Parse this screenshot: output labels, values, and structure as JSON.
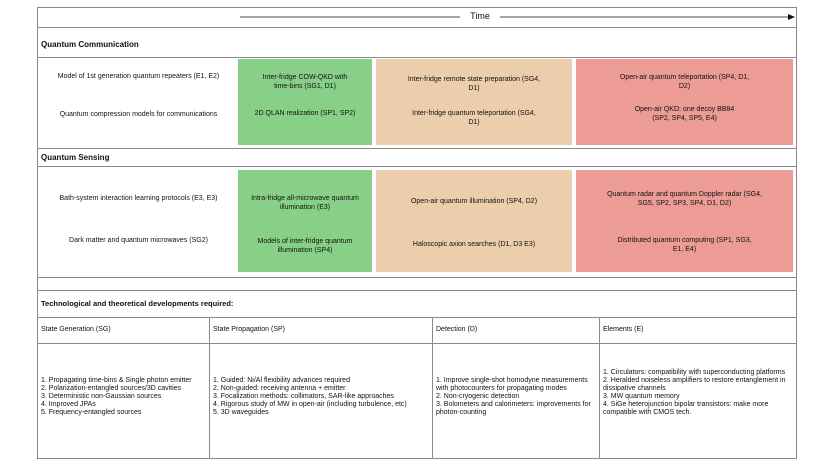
{
  "time_label": "Time",
  "colors": {
    "green": "#88d088",
    "tan": "#eccdac",
    "red": "#ec9c94",
    "border": "#8a8a8a"
  },
  "communication": {
    "title": "Quantum Communication",
    "left": [
      "Model of 1st generation quantum repeaters (E1, E2)",
      "Quantum compression models for communications"
    ],
    "green": [
      "Inter-fridge COW-QKD with time-bins (SG1, D1)",
      "2D QLAN realization (SP1, SP2)"
    ],
    "tan": [
      "Inter-fridge remote state preparation (SG4, D1)",
      "Inter-fridge quantum teleportation (SG4, D1)"
    ],
    "red": [
      "Open-air quantum teleportation (SP4, D1, D2)",
      "Open-air QKD: one decoy BB84 (SP2, SP4, SP5, E4)"
    ]
  },
  "sensing": {
    "title": "Quantum Sensing",
    "left": [
      "Bath-system interaction learning protocols (E3, E3)",
      "Dark matter and quantum microwaves (SG2)"
    ],
    "green": [
      "Intra-fridge all-microwave quantum illumination (E3)",
      "Models of inter-fridge quantum illumination (SP4)"
    ],
    "tan": [
      "Open-air quantum illumination (SP4, D2)",
      "Haloscopic axion searches (D1, D3 E3)"
    ],
    "red": [
      "Quantum radar and quantum Doppler radar (SG4, SG5, SP2, SP3, SP4, D1, D2)",
      "Distributed quantum computing (SP1, SG3, E1, E4)"
    ]
  },
  "developments": {
    "title": "Technological and theoretical developments required:",
    "columns": [
      {
        "heading": "State Generation (SG)",
        "items": [
          "1. Propagating time-bins & Single photon emitter",
          "2. Polarization-entangled sources/3D cavities",
          "3. Deterministic non-Gaussian sources",
          "4. Improved JPAs",
          "5. Frequency-entangled sources"
        ]
      },
      {
        "heading": "State Propagation (SP)",
        "items": [
          "1. Guided: Ni/Al flexibility advances required",
          "2. Non-guided: receiving antenna + emitter",
          "3. Focalization methods: collimators, SAR-like approaches",
          "4. Rigorous study of MW in open-air (including turbulence, etc)",
          "5. 3D waveguides"
        ]
      },
      {
        "heading": "Detection (D)",
        "items": [
          "1. Improve single-shot homodyne measurements with photocounters for propagating modes",
          "2. Non-cryogenic detection",
          "3. Bolometers and calorimeters: improvements for photon-counting"
        ]
      },
      {
        "heading": "Elements (E)",
        "items": [
          "1. Circulators: compatibility with superconducting platforms",
          "2. Heralded noiseless amplifiers to restore entanglement in dissipative channels",
          "3. MW quantum memory",
          "4. SiGe heterojunction bipolar transistors: make more compatible with CMOS tech."
        ]
      }
    ]
  }
}
